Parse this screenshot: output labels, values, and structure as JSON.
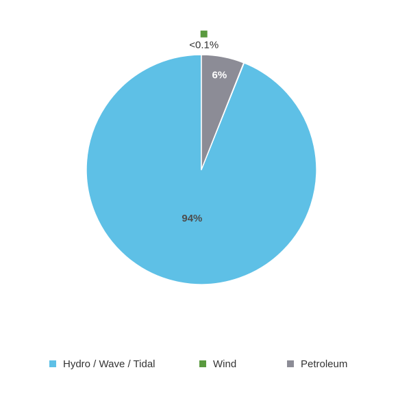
{
  "chart_data": {
    "type": "pie",
    "slices": [
      {
        "name": "Hydro / Wave / Tidal",
        "value": 94,
        "label": "94%",
        "color": "#5ec0e6",
        "label_color": "#4d4d4d"
      },
      {
        "name": "Wind",
        "value": 0.05,
        "label": "<0.1%",
        "color": "#5a9a3f",
        "label_color": "#333333"
      },
      {
        "name": "Petroleum",
        "value": 6,
        "label": "6%",
        "color": "#8c8c96",
        "label_color": "#ffffff"
      }
    ],
    "legend_position": "bottom",
    "start_angle_deg": 0,
    "direction": "counterclockwise",
    "slice_border_color": "#ffffff"
  },
  "legend": {
    "items": [
      {
        "label": "Hydro / Wave / Tidal",
        "color": "#5ec0e6"
      },
      {
        "label": "Wind",
        "color": "#5a9a3f"
      },
      {
        "label": "Petroleum",
        "color": "#8c8c96"
      }
    ]
  }
}
